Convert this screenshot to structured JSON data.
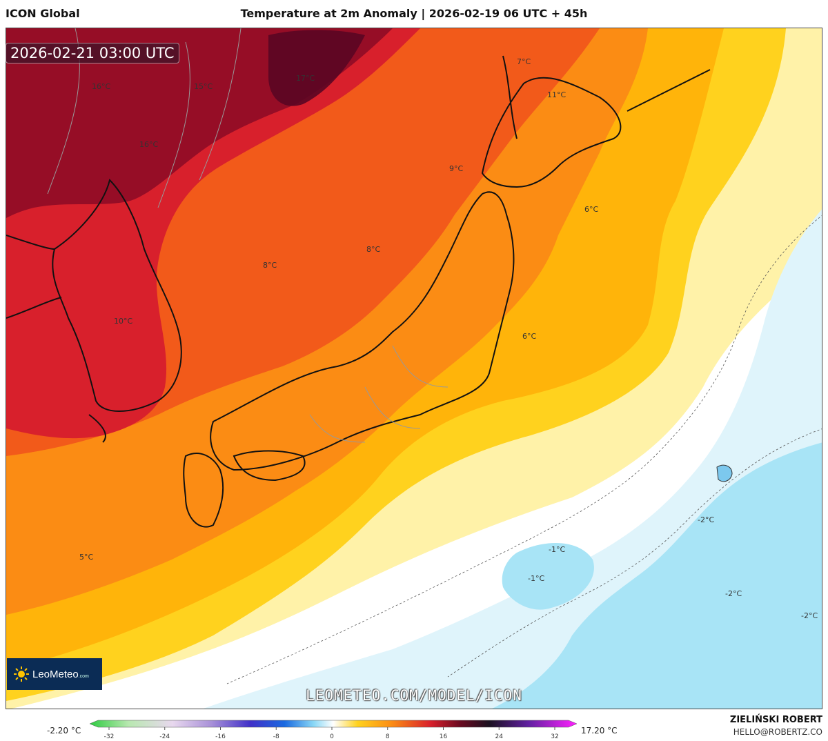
{
  "header": {
    "model": "ICON Global",
    "title": "Temperature at 2m Anomaly | 2026-02-19 06 UTC + 45h"
  },
  "map": {
    "valid_time": "2026-02-21 03:00 UTC",
    "watermark": "LEOMETEO.COM/MODEL/ICON",
    "labels": [
      {
        "text": "16°C"
      },
      {
        "text": "15°C"
      },
      {
        "text": "17°C"
      },
      {
        "text": "16°C"
      },
      {
        "text": "7°C"
      },
      {
        "text": "11°C"
      },
      {
        "text": "9°C"
      },
      {
        "text": "6°C"
      },
      {
        "text": "8°C"
      },
      {
        "text": "8°C"
      },
      {
        "text": "10°C"
      },
      {
        "text": "6°C"
      },
      {
        "text": "5°C"
      },
      {
        "text": "-2°C"
      },
      {
        "text": "-1°C"
      },
      {
        "text": "-1°C"
      },
      {
        "text": "-2°C"
      },
      {
        "text": "-2°C"
      }
    ],
    "colors": {
      "deep_red": "#8b0a26",
      "red": "#d8202c",
      "orange_red": "#f25a1a",
      "orange": "#fb8c14",
      "amber": "#ffb40a",
      "yellow": "#ffd21e",
      "light_yellow": "#fff2a8",
      "white": "#ffffff",
      "light_blue": "#dff4fb",
      "blue": "#a8e4f6"
    }
  },
  "logo": {
    "name": "LeoMeteo",
    "suffix": ".com"
  },
  "legend": {
    "min_label": "-2.20 °C",
    "max_label": "17.20 °C",
    "ticks": [
      "-32",
      "-24",
      "-16",
      "-8",
      "0",
      "8",
      "16",
      "24",
      "32"
    ]
  },
  "footer": {
    "author": "ZIELIŃSKI ROBERT",
    "email": "HELLO@ROBERTZ.CO"
  }
}
